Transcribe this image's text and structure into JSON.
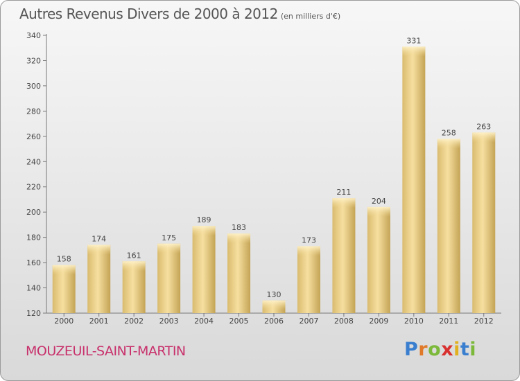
{
  "header": {
    "title": "Autres Revenus Divers de 2000 à 2012",
    "subtitle": "(en milliers d'€)"
  },
  "footer": {
    "commune": "MOUZEUIL-SAINT-MARTIN",
    "logo": "Proxiti"
  },
  "colors": {
    "bar_light": "#f5dc9a",
    "bar_dark": "#c8a858",
    "commune": "#c8306b"
  },
  "chart_data": {
    "type": "bar",
    "categories": [
      "2000",
      "2001",
      "2002",
      "2003",
      "2004",
      "2005",
      "2006",
      "2007",
      "2008",
      "2009",
      "2010",
      "2011",
      "2012"
    ],
    "values": [
      158,
      174,
      161,
      175,
      189,
      183,
      130,
      173,
      211,
      204,
      331,
      258,
      263
    ],
    "data_labels": [
      "158",
      "174",
      "161",
      "175",
      "189",
      "183",
      "130",
      "173",
      "211",
      "204",
      "331",
      "258",
      "263"
    ],
    "title": "Autres Revenus Divers de 2000 à 2012",
    "ylim": [
      120,
      340
    ],
    "yticks": [
      120,
      140,
      160,
      180,
      200,
      220,
      240,
      260,
      280,
      300,
      320,
      340
    ],
    "grid": false,
    "legend": "none"
  }
}
